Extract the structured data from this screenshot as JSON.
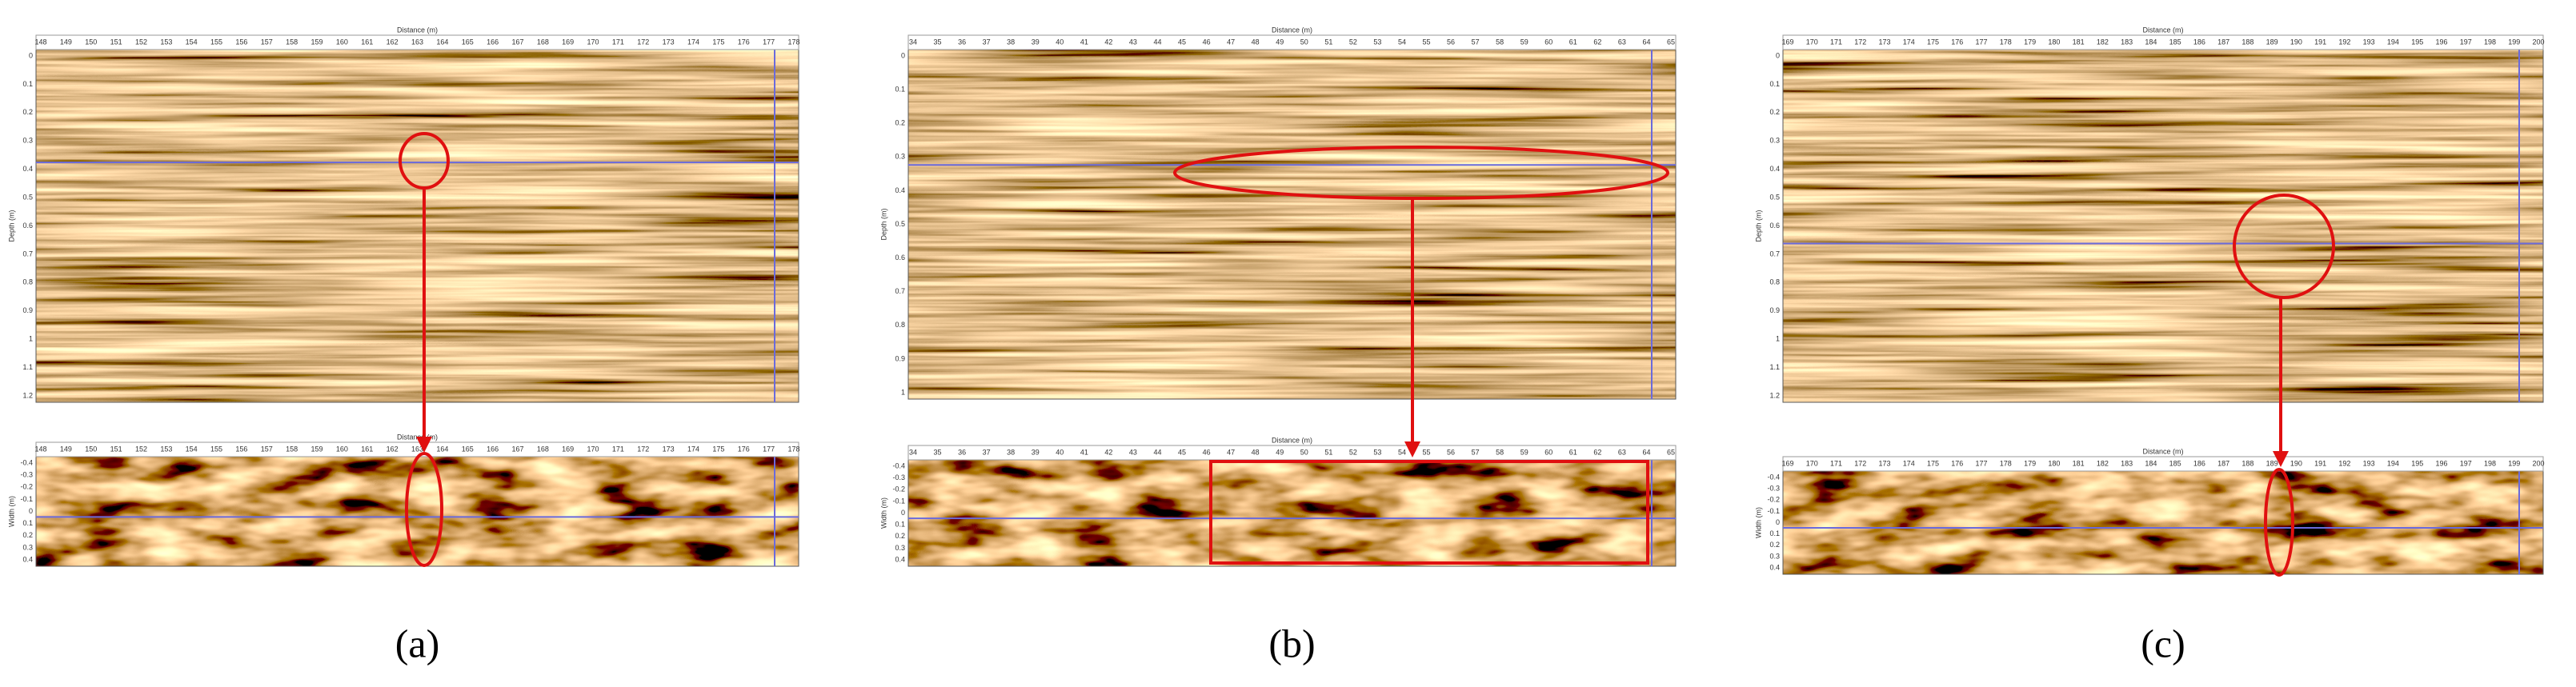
{
  "panels": [
    {
      "label": "(a)",
      "profile": {
        "x_title": "Distance (m)",
        "y_title": "Depth (m)",
        "x_ticks": [
          "148",
          "149",
          "150",
          "151",
          "152",
          "153",
          "154",
          "155",
          "156",
          "157",
          "158",
          "159",
          "160",
          "161",
          "162",
          "163",
          "164",
          "165",
          "166",
          "167",
          "168",
          "169",
          "170",
          "171",
          "172",
          "173",
          "174",
          "175",
          "176",
          "177",
          "178"
        ],
        "y_ticks": [
          "0",
          "0.1",
          "0.2",
          "0.3",
          "0.4",
          "0.5",
          "0.6",
          "0.7",
          "0.8",
          "0.9",
          "1",
          "1.1",
          "1.2"
        ]
      },
      "plan": {
        "x_title": "Distance (m)",
        "y_title": "Width (m)",
        "x_ticks": [
          "148",
          "149",
          "150",
          "151",
          "152",
          "153",
          "154",
          "155",
          "156",
          "157",
          "158",
          "159",
          "160",
          "161",
          "162",
          "163",
          "164",
          "165",
          "166",
          "167",
          "168",
          "169",
          "170",
          "171",
          "172",
          "173",
          "174",
          "175",
          "176",
          "177",
          "178"
        ],
        "y_ticks": [
          "-0.4",
          "-0.3",
          "-0.2",
          "-0.1",
          "0",
          "0.1",
          "0.2",
          "0.3",
          "0.4"
        ]
      }
    },
    {
      "label": "(b)",
      "profile": {
        "x_title": "Distance (m)",
        "y_title": "Depth (m)",
        "x_ticks": [
          "34",
          "35",
          "36",
          "37",
          "38",
          "39",
          "40",
          "41",
          "42",
          "43",
          "44",
          "45",
          "46",
          "47",
          "48",
          "49",
          "50",
          "51",
          "52",
          "53",
          "54",
          "55",
          "56",
          "57",
          "58",
          "59",
          "60",
          "61",
          "62",
          "63",
          "64",
          "65"
        ],
        "y_ticks": [
          "0",
          "0.1",
          "0.2",
          "0.3",
          "0.4",
          "0.5",
          "0.6",
          "0.7",
          "0.8",
          "0.9",
          "1"
        ]
      },
      "plan": {
        "x_title": "Distance (m)",
        "y_title": "Width (m)",
        "x_ticks": [
          "34",
          "35",
          "36",
          "37",
          "38",
          "39",
          "40",
          "41",
          "42",
          "43",
          "44",
          "45",
          "46",
          "47",
          "48",
          "49",
          "50",
          "51",
          "52",
          "53",
          "54",
          "55",
          "56",
          "57",
          "58",
          "59",
          "60",
          "61",
          "62",
          "63",
          "64",
          "65"
        ],
        "y_ticks": [
          "-0.4",
          "-0.3",
          "-0.2",
          "-0.1",
          "0",
          "0.1",
          "0.2",
          "0.3",
          "0.4"
        ]
      }
    },
    {
      "label": "(c)",
      "profile": {
        "x_title": "Distance (m)",
        "y_title": "Depth (m)",
        "x_ticks": [
          "169",
          "170",
          "171",
          "172",
          "173",
          "174",
          "175",
          "176",
          "177",
          "178",
          "179",
          "180",
          "181",
          "182",
          "183",
          "184",
          "185",
          "186",
          "187",
          "188",
          "189",
          "190",
          "191",
          "192",
          "193",
          "194",
          "195",
          "196",
          "197",
          "198",
          "199",
          "200"
        ],
        "y_ticks": [
          "0",
          "0.1",
          "0.2",
          "0.3",
          "0.4",
          "0.5",
          "0.6",
          "0.7",
          "0.8",
          "0.9",
          "1",
          "1.1",
          "1.2"
        ]
      },
      "plan": {
        "x_title": "Distance (m)",
        "y_title": "Width (m)",
        "x_ticks": [
          "169",
          "170",
          "171",
          "172",
          "173",
          "174",
          "175",
          "176",
          "177",
          "178",
          "179",
          "180",
          "181",
          "182",
          "183",
          "184",
          "185",
          "186",
          "187",
          "188",
          "189",
          "190",
          "191",
          "192",
          "193",
          "194",
          "195",
          "196",
          "197",
          "198",
          "199",
          "200"
        ],
        "y_ticks": [
          "-0.4",
          "-0.3",
          "-0.2",
          "-0.1",
          "0",
          "0.1",
          "0.2",
          "0.3",
          "0.4"
        ]
      }
    }
  ]
}
